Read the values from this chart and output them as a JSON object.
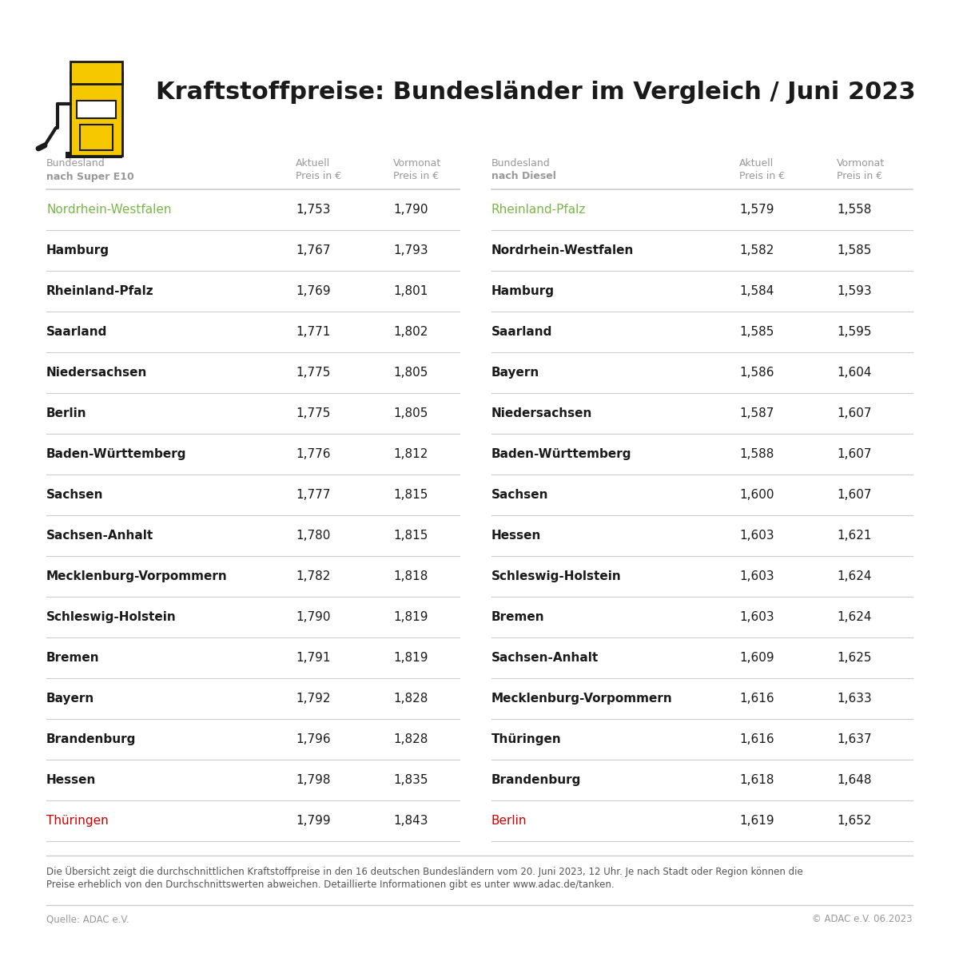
{
  "title": "Kraftstoffpreise: Bundesländer im Vergleich / Juni 2023",
  "background_color": "#ffffff",
  "left_table": {
    "header_col1_line1": "Bundesland",
    "header_col1_line2": "nach Super E10",
    "header_col2_line1": "Aktuell",
    "header_col2_line2": "Preis in €",
    "header_col3_line1": "Vormonat",
    "header_col3_line2": "Preis in €",
    "rows": [
      {
        "name": "Nordrhein-Westfalen",
        "aktuell": "1,753",
        "vormonat": "1,790",
        "color": "#7ab648",
        "bold": false
      },
      {
        "name": "Hamburg",
        "aktuell": "1,767",
        "vormonat": "1,793",
        "color": "#1a1a1a",
        "bold": true
      },
      {
        "name": "Rheinland-Pfalz",
        "aktuell": "1,769",
        "vormonat": "1,801",
        "color": "#1a1a1a",
        "bold": true
      },
      {
        "name": "Saarland",
        "aktuell": "1,771",
        "vormonat": "1,802",
        "color": "#1a1a1a",
        "bold": true
      },
      {
        "name": "Niedersachsen",
        "aktuell": "1,775",
        "vormonat": "1,805",
        "color": "#1a1a1a",
        "bold": true
      },
      {
        "name": "Berlin",
        "aktuell": "1,775",
        "vormonat": "1,805",
        "color": "#1a1a1a",
        "bold": true
      },
      {
        "name": "Baden-Württemberg",
        "aktuell": "1,776",
        "vormonat": "1,812",
        "color": "#1a1a1a",
        "bold": true
      },
      {
        "name": "Sachsen",
        "aktuell": "1,777",
        "vormonat": "1,815",
        "color": "#1a1a1a",
        "bold": true
      },
      {
        "name": "Sachsen-Anhalt",
        "aktuell": "1,780",
        "vormonat": "1,815",
        "color": "#1a1a1a",
        "bold": true
      },
      {
        "name": "Mecklenburg-Vorpommern",
        "aktuell": "1,782",
        "vormonat": "1,818",
        "color": "#1a1a1a",
        "bold": true
      },
      {
        "name": "Schleswig-Holstein",
        "aktuell": "1,790",
        "vormonat": "1,819",
        "color": "#1a1a1a",
        "bold": true
      },
      {
        "name": "Bremen",
        "aktuell": "1,791",
        "vormonat": "1,819",
        "color": "#1a1a1a",
        "bold": true
      },
      {
        "name": "Bayern",
        "aktuell": "1,792",
        "vormonat": "1,828",
        "color": "#1a1a1a",
        "bold": true
      },
      {
        "name": "Brandenburg",
        "aktuell": "1,796",
        "vormonat": "1,828",
        "color": "#1a1a1a",
        "bold": true
      },
      {
        "name": "Hessen",
        "aktuell": "1,798",
        "vormonat": "1,835",
        "color": "#1a1a1a",
        "bold": true
      },
      {
        "name": "Thüringen",
        "aktuell": "1,799",
        "vormonat": "1,843",
        "color": "#cc0000",
        "bold": false
      }
    ]
  },
  "right_table": {
    "header_col1_line1": "Bundesland",
    "header_col1_line2": "nach Diesel",
    "header_col2_line1": "Aktuell",
    "header_col2_line2": "Preis in €",
    "header_col3_line1": "Vormonat",
    "header_col3_line2": "Preis in €",
    "rows": [
      {
        "name": "Rheinland-Pfalz",
        "aktuell": "1,579",
        "vormonat": "1,558",
        "color": "#7ab648",
        "bold": false
      },
      {
        "name": "Nordrhein-Westfalen",
        "aktuell": "1,582",
        "vormonat": "1,585",
        "color": "#1a1a1a",
        "bold": true
      },
      {
        "name": "Hamburg",
        "aktuell": "1,584",
        "vormonat": "1,593",
        "color": "#1a1a1a",
        "bold": true
      },
      {
        "name": "Saarland",
        "aktuell": "1,585",
        "vormonat": "1,595",
        "color": "#1a1a1a",
        "bold": true
      },
      {
        "name": "Bayern",
        "aktuell": "1,586",
        "vormonat": "1,604",
        "color": "#1a1a1a",
        "bold": true
      },
      {
        "name": "Niedersachsen",
        "aktuell": "1,587",
        "vormonat": "1,607",
        "color": "#1a1a1a",
        "bold": true
      },
      {
        "name": "Baden-Württemberg",
        "aktuell": "1,588",
        "vormonat": "1,607",
        "color": "#1a1a1a",
        "bold": true
      },
      {
        "name": "Sachsen",
        "aktuell": "1,600",
        "vormonat": "1,607",
        "color": "#1a1a1a",
        "bold": true
      },
      {
        "name": "Hessen",
        "aktuell": "1,603",
        "vormonat": "1,621",
        "color": "#1a1a1a",
        "bold": true
      },
      {
        "name": "Schleswig-Holstein",
        "aktuell": "1,603",
        "vormonat": "1,624",
        "color": "#1a1a1a",
        "bold": true
      },
      {
        "name": "Bremen",
        "aktuell": "1,603",
        "vormonat": "1,624",
        "color": "#1a1a1a",
        "bold": true
      },
      {
        "name": "Sachsen-Anhalt",
        "aktuell": "1,609",
        "vormonat": "1,625",
        "color": "#1a1a1a",
        "bold": true
      },
      {
        "name": "Mecklenburg-Vorpommern",
        "aktuell": "1,616",
        "vormonat": "1,633",
        "color": "#1a1a1a",
        "bold": true
      },
      {
        "name": "Thüringen",
        "aktuell": "1,616",
        "vormonat": "1,637",
        "color": "#1a1a1a",
        "bold": true
      },
      {
        "name": "Brandenburg",
        "aktuell": "1,618",
        "vormonat": "1,648",
        "color": "#1a1a1a",
        "bold": true
      },
      {
        "name": "Berlin",
        "aktuell": "1,619",
        "vormonat": "1,652",
        "color": "#cc0000",
        "bold": false
      }
    ]
  },
  "footnote_line1": "Die Übersicht zeigt die durchschnittlichen Kraftstoffpreise in den 16 deutschen Bundesländern vom 20. Juni 2023, 12 Uhr. Je nach Stadt oder Region können die",
  "footnote_line2": "Preise erheblich von den Durchschnittswerten abweichen. Detaillierte Informationen gibt es unter www.adac.de/tanken.",
  "source_left": "Quelle: ADAC e.V.",
  "source_right": "© ADAC e.V. 06.2023",
  "icon_color_yellow": "#f5c800",
  "icon_color_black": "#1a1a1a",
  "line_color": "#cccccc",
  "header_color": "#999999",
  "text_color": "#1a1a1a",
  "footnote_color": "#555555",
  "source_color": "#999999"
}
